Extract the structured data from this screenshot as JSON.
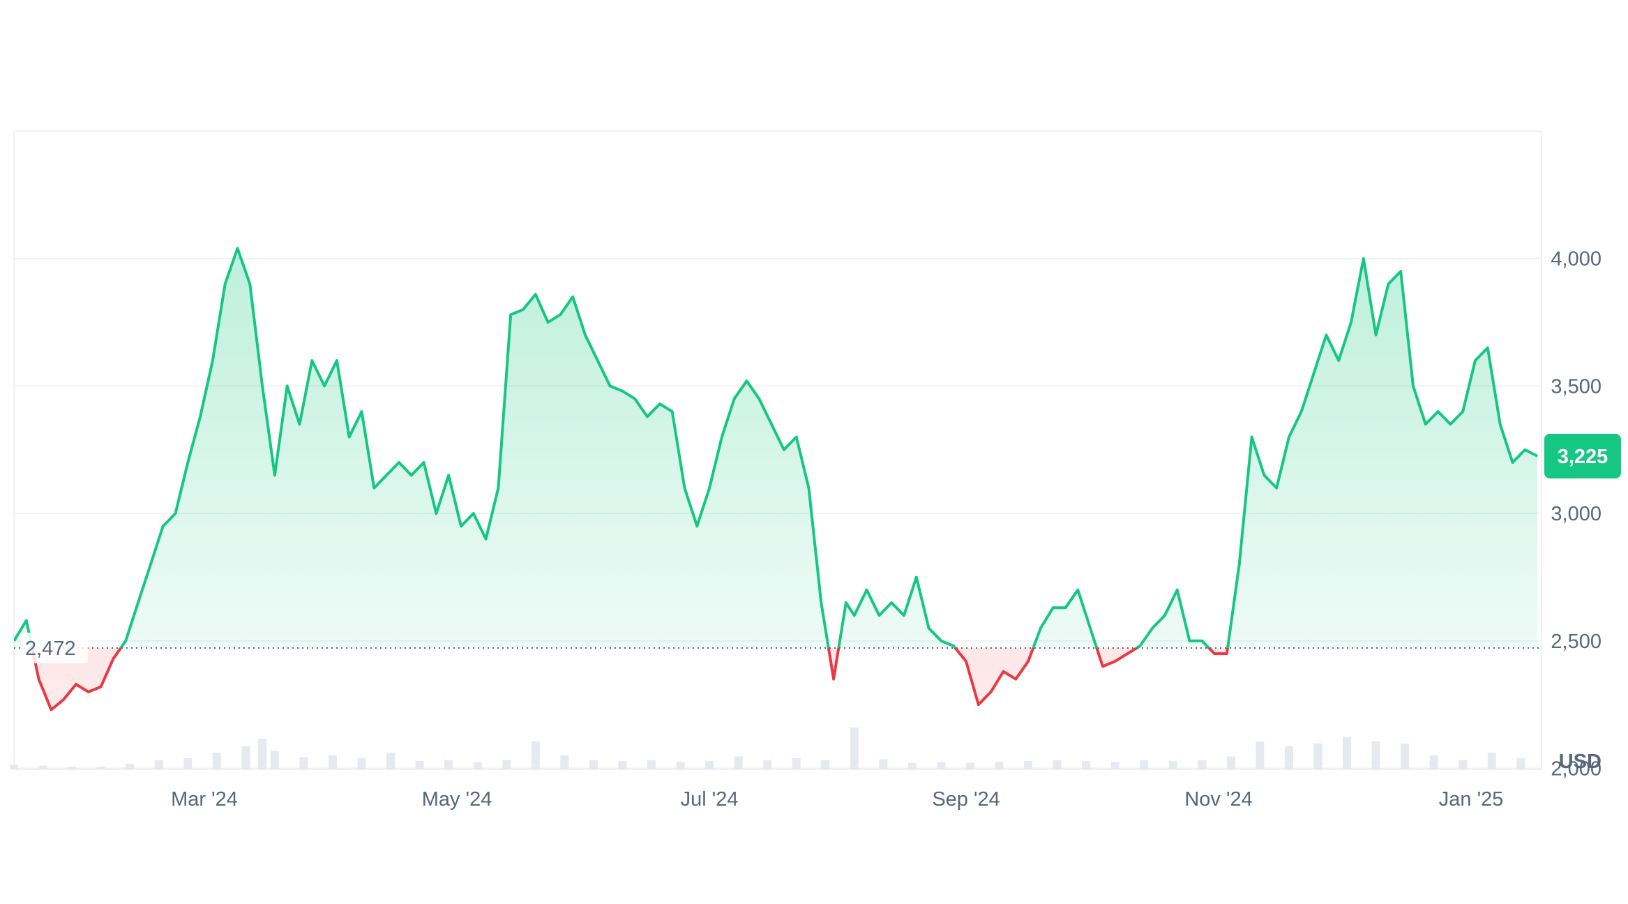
{
  "chart_data": {
    "type": "area",
    "unit_label": "USD",
    "x_tick_labels": [
      "Mar '24",
      "May '24",
      "Jul '24",
      "Sep '24",
      "Nov '24",
      "Jan '25"
    ],
    "x_tick_dates": [
      "2024-03-01",
      "2024-05-01",
      "2024-07-01",
      "2024-09-01",
      "2024-11-01",
      "2025-01-01"
    ],
    "x_range": [
      "2024-01-15",
      "2025-01-18"
    ],
    "y_ticks": [
      2000,
      2500,
      3000,
      3500,
      4000
    ],
    "y_tick_labels": [
      "2,000",
      "2,500",
      "3,000",
      "3,500",
      "4,000"
    ],
    "ylim": [
      1996,
      4500
    ],
    "grid": true,
    "baseline": {
      "value": 2472,
      "label": "2,472"
    },
    "last_price": {
      "value": 3225,
      "label": "3,225"
    },
    "colors": {
      "up_line": "#16c784",
      "down_line": "#ea3943",
      "up_fill": "#16c784",
      "down_fill": "#ea3943",
      "grid": "#eff2f5",
      "axis_text": "#58667e",
      "volume": "#e6e9ef",
      "badge": "#16c784"
    },
    "series": [
      {
        "x": [
          "2024-01-15",
          "2024-01-18",
          "2024-01-21",
          "2024-01-24",
          "2024-01-27",
          "2024-01-30",
          "2024-02-02",
          "2024-02-05",
          "2024-02-08",
          "2024-02-11",
          "2024-02-14",
          "2024-02-17",
          "2024-02-20",
          "2024-02-23",
          "2024-02-26",
          "2024-02-29",
          "2024-03-03",
          "2024-03-06",
          "2024-03-09",
          "2024-03-12",
          "2024-03-15",
          "2024-03-18",
          "2024-03-21",
          "2024-03-24",
          "2024-03-27",
          "2024-03-30",
          "2024-04-02",
          "2024-04-05",
          "2024-04-08",
          "2024-04-11",
          "2024-04-14",
          "2024-04-17",
          "2024-04-20",
          "2024-04-23",
          "2024-04-26",
          "2024-04-29",
          "2024-05-02",
          "2024-05-05",
          "2024-05-08",
          "2024-05-11",
          "2024-05-14",
          "2024-05-17",
          "2024-05-20",
          "2024-05-23",
          "2024-05-26",
          "2024-05-29",
          "2024-06-01",
          "2024-06-04",
          "2024-06-07",
          "2024-06-10",
          "2024-06-13",
          "2024-06-16",
          "2024-06-19",
          "2024-06-22",
          "2024-06-25",
          "2024-06-28",
          "2024-07-01",
          "2024-07-04",
          "2024-07-07",
          "2024-07-10",
          "2024-07-13",
          "2024-07-16",
          "2024-07-19",
          "2024-07-22",
          "2024-07-25",
          "2024-07-28",
          "2024-07-31",
          "2024-08-03",
          "2024-08-05",
          "2024-08-08",
          "2024-08-11",
          "2024-08-14",
          "2024-08-17",
          "2024-08-20",
          "2024-08-23",
          "2024-08-26",
          "2024-08-29",
          "2024-09-01",
          "2024-09-04",
          "2024-09-07",
          "2024-09-10",
          "2024-09-13",
          "2024-09-16",
          "2024-09-19",
          "2024-09-22",
          "2024-09-25",
          "2024-09-28",
          "2024-10-01",
          "2024-10-04",
          "2024-10-07",
          "2024-10-10",
          "2024-10-13",
          "2024-10-16",
          "2024-10-19",
          "2024-10-22",
          "2024-10-25",
          "2024-10-28",
          "2024-10-31",
          "2024-11-03",
          "2024-11-06",
          "2024-11-09",
          "2024-11-12",
          "2024-11-15",
          "2024-11-18",
          "2024-11-21",
          "2024-11-24",
          "2024-11-27",
          "2024-11-30",
          "2024-12-03",
          "2024-12-06",
          "2024-12-09",
          "2024-12-12",
          "2024-12-15",
          "2024-12-18",
          "2024-12-21",
          "2024-12-24",
          "2024-12-27",
          "2024-12-30",
          "2025-01-02",
          "2025-01-05",
          "2025-01-08",
          "2025-01-11",
          "2025-01-14",
          "2025-01-17"
        ],
        "y": [
          2500,
          2580,
          2350,
          2230,
          2270,
          2330,
          2300,
          2320,
          2430,
          2500,
          2650,
          2800,
          2950,
          3000,
          3200,
          3380,
          3600,
          3900,
          4040,
          3900,
          3500,
          3150,
          3500,
          3350,
          3600,
          3500,
          3600,
          3300,
          3400,
          3100,
          3150,
          3200,
          3150,
          3200,
          3000,
          3150,
          2950,
          3000,
          2900,
          3100,
          3780,
          3800,
          3860,
          3750,
          3780,
          3850,
          3700,
          3600,
          3500,
          3480,
          3450,
          3380,
          3430,
          3400,
          3100,
          2950,
          3100,
          3300,
          3450,
          3520,
          3450,
          3350,
          3250,
          3300,
          3100,
          2650,
          2350,
          2650,
          2600,
          2700,
          2600,
          2650,
          2600,
          2750,
          2550,
          2500,
          2480,
          2420,
          2250,
          2300,
          2380,
          2350,
          2420,
          2550,
          2630,
          2630,
          2700,
          2550,
          2400,
          2420,
          2450,
          2480,
          2550,
          2600,
          2700,
          2500,
          2500,
          2450,
          2450,
          2800,
          3300,
          3150,
          3100,
          3300,
          3400,
          3550,
          3700,
          3600,
          3750,
          4000,
          3700,
          3900,
          3950,
          3500,
          3350,
          3400,
          3350,
          3400,
          3600,
          3650,
          3350,
          3200,
          3250,
          3225
        ]
      }
    ],
    "volume": [
      {
        "x": "2024-01-15",
        "v": 0.05
      },
      {
        "x": "2024-01-22",
        "v": 0.04
      },
      {
        "x": "2024-01-29",
        "v": 0.03
      },
      {
        "x": "2024-02-05",
        "v": 0.03
      },
      {
        "x": "2024-02-12",
        "v": 0.06
      },
      {
        "x": "2024-02-19",
        "v": 0.1
      },
      {
        "x": "2024-02-26",
        "v": 0.12
      },
      {
        "x": "2024-03-04",
        "v": 0.18
      },
      {
        "x": "2024-03-11",
        "v": 0.25
      },
      {
        "x": "2024-03-15",
        "v": 0.33
      },
      {
        "x": "2024-03-18",
        "v": 0.2
      },
      {
        "x": "2024-03-25",
        "v": 0.13
      },
      {
        "x": "2024-04-01",
        "v": 0.15
      },
      {
        "x": "2024-04-08",
        "v": 0.12
      },
      {
        "x": "2024-04-15",
        "v": 0.18
      },
      {
        "x": "2024-04-22",
        "v": 0.09
      },
      {
        "x": "2024-04-29",
        "v": 0.1
      },
      {
        "x": "2024-05-06",
        "v": 0.08
      },
      {
        "x": "2024-05-13",
        "v": 0.1
      },
      {
        "x": "2024-05-20",
        "v": 0.3
      },
      {
        "x": "2024-05-27",
        "v": 0.15
      },
      {
        "x": "2024-06-03",
        "v": 0.1
      },
      {
        "x": "2024-06-10",
        "v": 0.09
      },
      {
        "x": "2024-06-17",
        "v": 0.1
      },
      {
        "x": "2024-06-24",
        "v": 0.08
      },
      {
        "x": "2024-07-01",
        "v": 0.09
      },
      {
        "x": "2024-07-08",
        "v": 0.14
      },
      {
        "x": "2024-07-15",
        "v": 0.1
      },
      {
        "x": "2024-07-22",
        "v": 0.12
      },
      {
        "x": "2024-07-29",
        "v": 0.1
      },
      {
        "x": "2024-08-05",
        "v": 0.45
      },
      {
        "x": "2024-08-12",
        "v": 0.11
      },
      {
        "x": "2024-08-19",
        "v": 0.07
      },
      {
        "x": "2024-08-26",
        "v": 0.08
      },
      {
        "x": "2024-09-02",
        "v": 0.07
      },
      {
        "x": "2024-09-09",
        "v": 0.08
      },
      {
        "x": "2024-09-16",
        "v": 0.09
      },
      {
        "x": "2024-09-23",
        "v": 0.1
      },
      {
        "x": "2024-09-30",
        "v": 0.09
      },
      {
        "x": "2024-10-07",
        "v": 0.08
      },
      {
        "x": "2024-10-14",
        "v": 0.1
      },
      {
        "x": "2024-10-21",
        "v": 0.09
      },
      {
        "x": "2024-10-28",
        "v": 0.1
      },
      {
        "x": "2024-11-04",
        "v": 0.14
      },
      {
        "x": "2024-11-11",
        "v": 0.3
      },
      {
        "x": "2024-11-18",
        "v": 0.25
      },
      {
        "x": "2024-11-25",
        "v": 0.28
      },
      {
        "x": "2024-12-02",
        "v": 0.35
      },
      {
        "x": "2024-12-09",
        "v": 0.3
      },
      {
        "x": "2024-12-16",
        "v": 0.28
      },
      {
        "x": "2024-12-23",
        "v": 0.15
      },
      {
        "x": "2024-12-30",
        "v": 0.1
      },
      {
        "x": "2025-01-06",
        "v": 0.18
      },
      {
        "x": "2025-01-13",
        "v": 0.12
      }
    ]
  }
}
